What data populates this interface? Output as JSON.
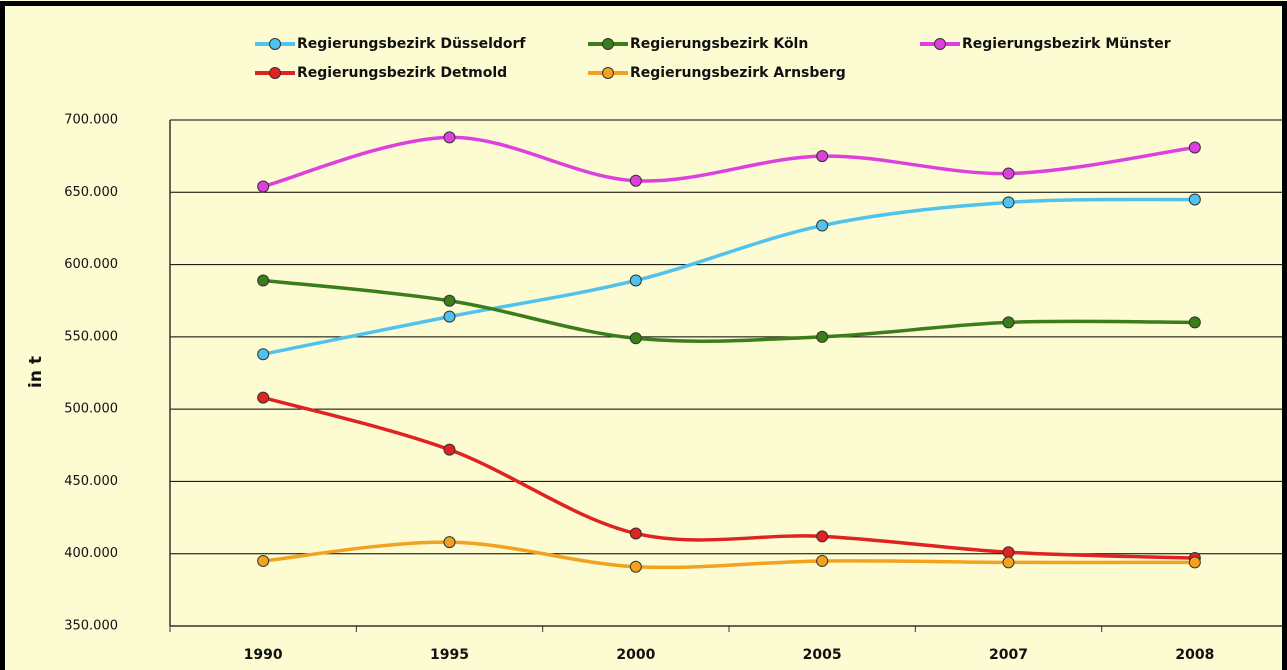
{
  "chart_data": {
    "type": "line",
    "y_label": "in t",
    "categories": [
      "1990",
      "1995",
      "2000",
      "2005",
      "2007",
      "2008"
    ],
    "series": [
      {
        "name": "Regierungsbezirk Düsseldorf",
        "color": "#4fc3ee",
        "values": [
          538000,
          564000,
          589000,
          627000,
          643000,
          645000
        ]
      },
      {
        "name": "Regierungsbezirk Köln",
        "color": "#3a7d1a",
        "values": [
          589000,
          575000,
          549000,
          550000,
          560000,
          560000
        ]
      },
      {
        "name": "Regierungsbezirk Münster",
        "color": "#dd40dd",
        "values": [
          654000,
          688000,
          658000,
          675000,
          663000,
          681000
        ]
      },
      {
        "name": "Regierungsbezirk Detmold",
        "color": "#e02222",
        "values": [
          508000,
          472000,
          414000,
          412000,
          401000,
          397000
        ]
      },
      {
        "name": "Regierungsbezirk Arnsberg",
        "color": "#f2a21e",
        "values": [
          395000,
          408000,
          391000,
          395000,
          394000,
          394000
        ]
      }
    ],
    "ylim": [
      350000,
      700000
    ],
    "yticks": [
      {
        "value": 350000,
        "label": "350.000"
      },
      {
        "value": 400000,
        "label": "400.000"
      },
      {
        "value": 450000,
        "label": "450.000"
      },
      {
        "value": 500000,
        "label": "500.000"
      },
      {
        "value": 550000,
        "label": "550.000"
      },
      {
        "value": 600000,
        "label": "600.000"
      },
      {
        "value": 650000,
        "label": "650.000"
      },
      {
        "value": 700000,
        "label": "700.000"
      }
    ],
    "grid": true,
    "legend": "top",
    "smooth": true
  }
}
